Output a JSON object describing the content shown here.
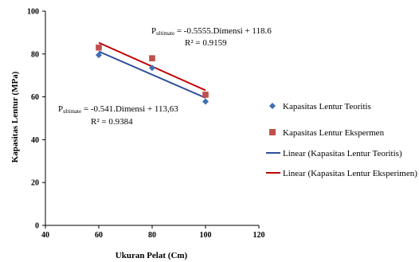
{
  "chart_data": {
    "type": "scatter",
    "xlabel": "Ukuran Pelat (Cm)",
    "ylabel": "Kapasitas Lentur (MPa)",
    "xlim": [
      40,
      120
    ],
    "ylim": [
      0,
      100
    ],
    "xticks": [
      "40",
      "60",
      "80",
      "100",
      "120"
    ],
    "yticks": [
      "0",
      "20",
      "40",
      "60",
      "80",
      "100"
    ],
    "series": [
      {
        "name": "Kapasitas Lentur Teoritis",
        "marker": "diamond",
        "color": "#3d6fb6",
        "x": [
          60,
          80,
          100
        ],
        "y": [
          79.5,
          73.5,
          57.8
        ]
      },
      {
        "name": "Kapasitas Lentur Ekspermen",
        "marker": "square",
        "color": "#c0504d",
        "x": [
          60,
          80,
          100
        ],
        "y": [
          83,
          78,
          61
        ]
      }
    ],
    "trendlines": [
      {
        "name": "Linear (Kapasitas Lentur Teoritis)",
        "color": "#2e4d9a",
        "slope": -0.541,
        "intercept": 113.63,
        "x_range": [
          60,
          100
        ]
      },
      {
        "name": "Linear (Kapasitas Lentur Eksperimen)",
        "color": "#c00000",
        "slope": -0.5555,
        "intercept": 118.6,
        "x_range": [
          60,
          100
        ]
      }
    ],
    "annotations": [
      {
        "p": "P",
        "sub": "ultimate",
        "formula": " = -0.5555.Dimensi + 118.6",
        "r2": "R² = 0.9159"
      },
      {
        "p": "P",
        "sub": "ultimate",
        "formula": " = -0.541.Dimensi + 113,63",
        "r2": "R² = 0.9384"
      }
    ],
    "grid": false,
    "legend_position": "right"
  }
}
